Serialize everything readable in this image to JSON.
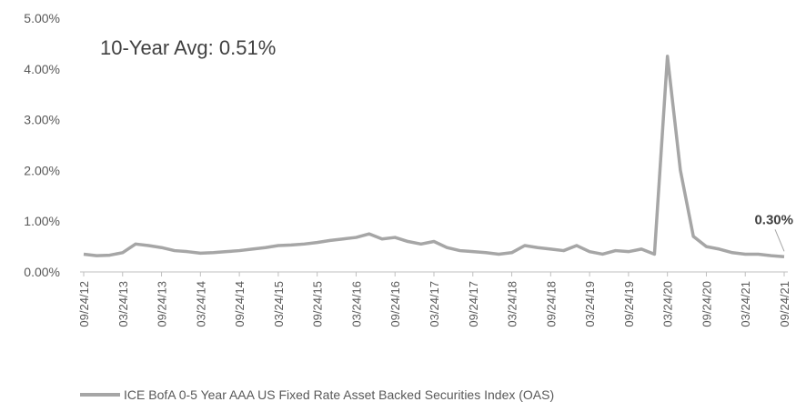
{
  "chart_data": {
    "type": "line",
    "annotation": "10-Year Avg:  0.51%",
    "categories": [
      "09/24/12",
      null,
      null,
      "03/24/13",
      null,
      null,
      "09/24/13",
      null,
      null,
      "03/24/14",
      null,
      null,
      "09/24/14",
      null,
      null,
      "03/24/15",
      null,
      null,
      "09/24/15",
      null,
      null,
      "03/24/16",
      null,
      null,
      "09/24/16",
      null,
      null,
      "03/24/17",
      null,
      null,
      "09/24/17",
      null,
      null,
      "03/24/18",
      null,
      null,
      "09/24/18",
      null,
      null,
      "03/24/19",
      null,
      null,
      "09/24/19",
      null,
      null,
      "03/24/20",
      null,
      null,
      "09/24/20",
      null,
      null,
      "03/24/21",
      null,
      null,
      "09/24/21"
    ],
    "series": [
      {
        "name": "ICE BofA 0-5 Year AAA US Fixed Rate Asset Backed Securities Index (OAS)",
        "color": "#a6a6a6",
        "values": [
          0.35,
          0.32,
          0.33,
          0.38,
          0.55,
          0.52,
          0.48,
          0.42,
          0.4,
          0.37,
          0.38,
          0.4,
          0.42,
          0.45,
          0.48,
          0.52,
          0.53,
          0.55,
          0.58,
          0.62,
          0.65,
          0.68,
          0.75,
          0.65,
          0.68,
          0.6,
          0.55,
          0.6,
          0.48,
          0.42,
          0.4,
          0.38,
          0.35,
          0.38,
          0.52,
          0.48,
          0.45,
          0.42,
          0.52,
          0.4,
          0.35,
          0.42,
          0.4,
          0.45,
          0.35,
          4.25,
          2.0,
          0.7,
          0.5,
          0.45,
          0.38,
          0.35,
          0.35,
          0.32,
          0.3
        ],
        "value_labels": [
          null,
          null,
          null,
          null,
          null,
          null,
          null,
          null,
          null,
          null,
          null,
          null,
          null,
          null,
          null,
          null,
          null,
          null,
          null,
          null,
          null,
          null,
          null,
          null,
          null,
          null,
          null,
          null,
          null,
          null,
          null,
          null,
          null,
          null,
          null,
          null,
          null,
          null,
          null,
          null,
          null,
          null,
          null,
          null,
          null,
          null,
          null,
          null,
          null,
          null,
          null,
          null,
          null,
          null,
          "0.30%"
        ]
      }
    ],
    "ylim": [
      0,
      5
    ],
    "yticks": [
      {
        "value": 0,
        "label": "0.00%"
      },
      {
        "value": 1,
        "label": "1.00%"
      },
      {
        "value": 2,
        "label": "2.00%"
      },
      {
        "value": 3,
        "label": "3.00%"
      },
      {
        "value": 4,
        "label": "4.00%"
      },
      {
        "value": 5,
        "label": "5.00%"
      }
    ],
    "grid": false
  }
}
